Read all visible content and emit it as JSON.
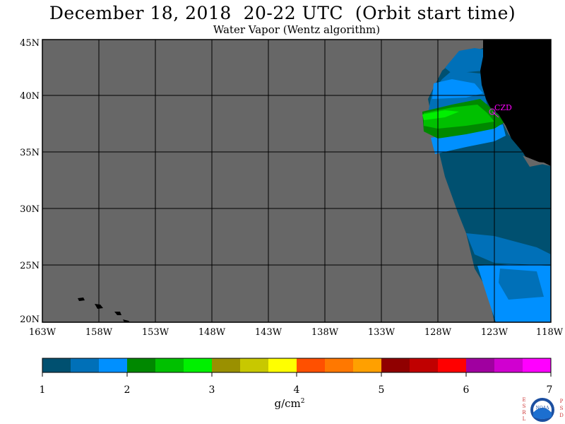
{
  "header": {
    "title": "December 18, 2018  20-22 UTC  (Orbit start time)",
    "subtitle": "Water Vapor (Wentz algorithm)"
  },
  "map": {
    "lat_labels": [
      "45N",
      "40N",
      "35N",
      "30N",
      "25N",
      "20N"
    ],
    "lon_labels": [
      "163W",
      "158W",
      "153W",
      "148W",
      "143W",
      "138W",
      "133W",
      "128W",
      "123W",
      "118W"
    ],
    "station_label": "CZD",
    "colors": {
      "nodata": "#676767",
      "land": "#000000",
      "station": "#ff00ff"
    }
  },
  "colorbar": {
    "tick_labels": [
      "1",
      "2",
      "3",
      "4",
      "5",
      "6",
      "7"
    ],
    "units_base": "g/cm",
    "units_exp": "2",
    "colors": [
      "#005070",
      "#0070b8",
      "#0090ff",
      "#008800",
      "#00c000",
      "#00f000",
      "#9a9000",
      "#c8c800",
      "#ffff00",
      "#ff5000",
      "#ff7800",
      "#ffa000",
      "#900000",
      "#c00000",
      "#ff0000",
      "#a000a0",
      "#d000d0",
      "#ff00ff"
    ]
  },
  "logo": {
    "left_letters": [
      "E",
      "S",
      "R",
      "L"
    ],
    "right_letters": [
      "P",
      "S",
      "D"
    ],
    "text": "NOAA"
  }
}
